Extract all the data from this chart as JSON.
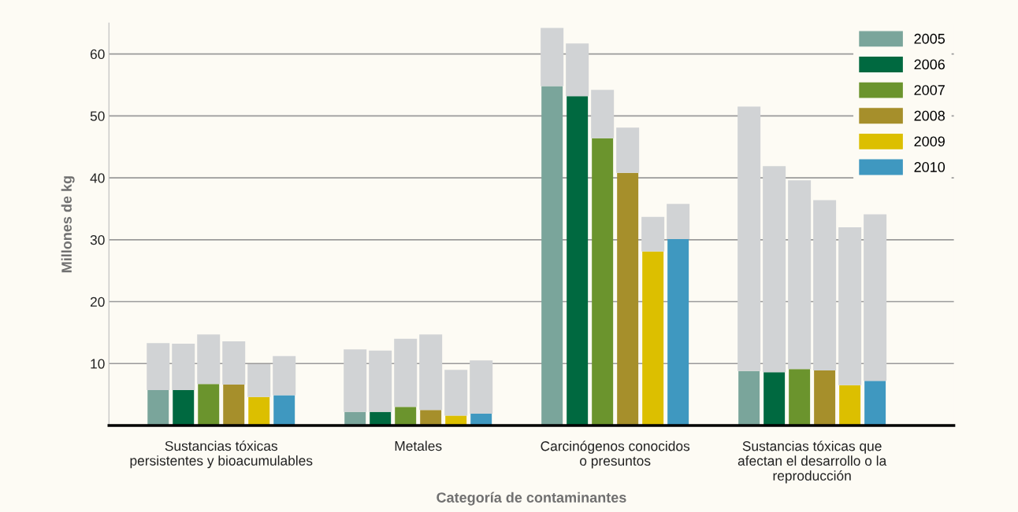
{
  "chart_data": {
    "type": "bar",
    "xlabel": "Categoría de contaminantes",
    "ylabel": "Millones de kg",
    "categories": [
      "Sustancias tóxicas\npersistentes y bioacumulables",
      "Metales",
      "Carcinógenos conocidos\no presuntos",
      "Sustancias tóxicas que\nafectan el desarrollo o la\nreproducción"
    ],
    "series": [
      {
        "name": "2005",
        "color": "#7aa59b",
        "values": [
          5.7,
          2.2,
          54.8,
          8.8
        ]
      },
      {
        "color": "#d1d3d5",
        "base": [
          5.7,
          2.2,
          54.8,
          8.8
        ],
        "values": [
          7.6,
          10.1,
          9.4,
          42.7
        ]
      },
      {
        "name": "2006",
        "color": "#006940",
        "values": [
          5.7,
          2.2,
          53.2,
          8.6
        ]
      },
      {
        "color": "#d1d3d5",
        "base": [
          5.7,
          2.2,
          53.2,
          8.6
        ],
        "values": [
          7.5,
          9.9,
          8.5,
          33.3
        ]
      },
      {
        "name": "2007",
        "color": "#6b942d",
        "values": [
          6.7,
          3.0,
          46.4,
          9.1
        ]
      },
      {
        "color": "#d1d3d5",
        "base": [
          6.7,
          3.0,
          46.4,
          9.1
        ],
        "values": [
          8.0,
          11.0,
          7.8,
          30.5
        ]
      },
      {
        "name": "2008",
        "color": "#a68f2b",
        "values": [
          6.6,
          2.5,
          40.8,
          8.9
        ]
      },
      {
        "color": "#d1d3d5",
        "base": [
          6.6,
          2.5,
          40.8,
          8.9
        ],
        "values": [
          7.0,
          12.2,
          7.3,
          27.5
        ]
      },
      {
        "name": "2009",
        "color": "#dcbf00",
        "values": [
          4.6,
          1.6,
          28.1,
          6.5
        ]
      },
      {
        "color": "#d1d3d5",
        "base": [
          4.6,
          1.6,
          28.1,
          6.5
        ],
        "values": [
          5.3,
          7.4,
          5.6,
          25.5
        ]
      },
      {
        "name": "2010",
        "color": "#3f98c0",
        "values": [
          4.9,
          1.9,
          30.1,
          7.2
        ]
      },
      {
        "color": "#d1d3d5",
        "base": [
          4.9,
          1.9,
          30.1,
          7.2
        ],
        "values": [
          6.3,
          8.6,
          5.7,
          26.9
        ]
      }
    ],
    "ylim": [
      0,
      65
    ],
    "yticks": [
      10,
      20,
      30,
      40,
      50,
      60
    ],
    "grid": "y",
    "legend": "top right"
  }
}
